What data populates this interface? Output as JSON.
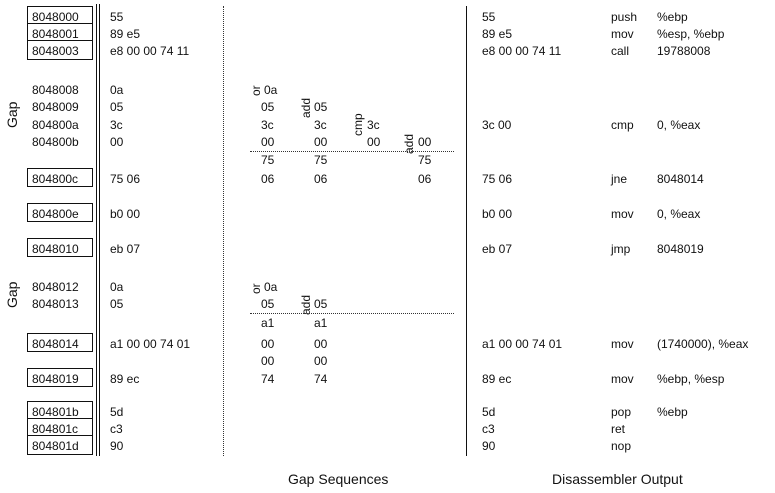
{
  "rows": [
    {
      "addr": "8048000",
      "boxed": true,
      "bytes": "55",
      "dis_bytes": "55",
      "mnemonic": "push",
      "operands": "%ebp"
    },
    {
      "addr": "8048001",
      "boxed": true,
      "bytes": "89 e5",
      "dis_bytes": "89 e5",
      "mnemonic": "mov",
      "operands": "%esp, %ebp"
    },
    {
      "addr": "8048003",
      "boxed": true,
      "bytes": "e8 00 00 74 11",
      "dis_bytes": "e8 00 00 74 11",
      "mnemonic": "call",
      "operands": "19788008"
    },
    {
      "addr": "8048008",
      "boxed": false,
      "bytes": "0a",
      "dis_bytes": "",
      "mnemonic": "",
      "operands": ""
    },
    {
      "addr": "8048009",
      "boxed": false,
      "bytes": "05",
      "dis_bytes": "",
      "mnemonic": "",
      "operands": ""
    },
    {
      "addr": "804800a",
      "boxed": false,
      "bytes": "3c",
      "dis_bytes": "3c 00",
      "mnemonic": "cmp",
      "operands": "0, %eax"
    },
    {
      "addr": "804800b",
      "boxed": false,
      "bytes": "00",
      "dis_bytes": "",
      "mnemonic": "",
      "operands": ""
    },
    {
      "addr": "804800c",
      "boxed": true,
      "bytes": "75 06",
      "dis_bytes": "75 06",
      "mnemonic": "jne",
      "operands": "8048014"
    },
    {
      "addr": "804800e",
      "boxed": true,
      "bytes": "b0 00",
      "dis_bytes": "b0 00",
      "mnemonic": "mov",
      "operands": "0, %eax"
    },
    {
      "addr": "8048010",
      "boxed": true,
      "bytes": "eb 07",
      "dis_bytes": "eb 07",
      "mnemonic": "jmp",
      "operands": "8048019"
    },
    {
      "addr": "8048012",
      "boxed": false,
      "bytes": "0a",
      "dis_bytes": "",
      "mnemonic": "",
      "operands": ""
    },
    {
      "addr": "8048013",
      "boxed": false,
      "bytes": "05",
      "dis_bytes": "",
      "mnemonic": "",
      "operands": ""
    },
    {
      "addr": "8048014",
      "boxed": true,
      "bytes": "a1 00 00 74 01",
      "dis_bytes": "a1 00 00 74 01",
      "mnemonic": "mov",
      "operands": "(1740000), %eax"
    },
    {
      "addr": "8048019",
      "boxed": true,
      "bytes": "89 ec",
      "dis_bytes": "89 ec",
      "mnemonic": "mov",
      "operands": "%ebp, %esp"
    },
    {
      "addr": "804801b",
      "boxed": true,
      "bytes": "5d",
      "dis_bytes": "5d",
      "mnemonic": "pop",
      "operands": "%ebp"
    },
    {
      "addr": "804801c",
      "boxed": true,
      "bytes": "c3",
      "dis_bytes": "c3",
      "mnemonic": "ret",
      "operands": ""
    },
    {
      "addr": "804801d",
      "boxed": true,
      "bytes": "90",
      "dis_bytes": "90",
      "mnemonic": "nop",
      "operands": ""
    }
  ],
  "gap_labels": [
    "Gap",
    "Gap"
  ],
  "gap_sequences": {
    "seq1_col1": [
      "0a",
      "05",
      "3c",
      "00",
      "75",
      "06"
    ],
    "seq1_col2": [
      "05",
      "3c",
      "00",
      "75",
      "06"
    ],
    "seq1_col3": [
      "3c",
      "00"
    ],
    "seq1_col4": [
      "00",
      "75",
      "06"
    ],
    "seq1_ops": [
      "or",
      "add",
      "cmp",
      "add"
    ],
    "seq2_col1": [
      "0a",
      "05",
      "a1",
      "00",
      "00",
      "74"
    ],
    "seq2_col2": [
      "05",
      "a1",
      "00",
      "00",
      "74"
    ],
    "seq2_ops": [
      "or",
      "add"
    ]
  },
  "captions": {
    "gap_sequences": "Gap Sequences",
    "disassembler_output": "Disassembler Output"
  }
}
